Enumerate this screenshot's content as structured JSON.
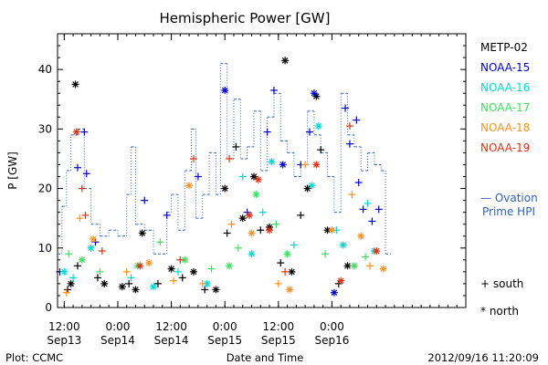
{
  "chart_data": {
    "type": "scatter",
    "title": "Hemispheric Power [GW]",
    "ylabel": "P [GW]",
    "xlabel": "Date and Time",
    "ylim": [
      0,
      46
    ],
    "xlim": [
      "2012-09-13T10:30",
      "2012-09-17T06:00"
    ],
    "y_ticks": [
      0,
      10,
      20,
      30,
      40
    ],
    "x_ticks": [
      {
        "t": "2012-09-13T12:00",
        "line1": "12:00",
        "line2": "Sep13"
      },
      {
        "t": "2012-09-14T00:00",
        "line1": "0:00",
        "line2": "Sep14"
      },
      {
        "t": "2012-09-14T12:00",
        "line1": "12:00",
        "line2": "Sep14"
      },
      {
        "t": "2012-09-15T00:00",
        "line1": "0:00",
        "line2": "Sep15"
      },
      {
        "t": "2012-09-15T12:00",
        "line1": "12:00",
        "line2": "Sep15"
      },
      {
        "t": "2012-09-16T00:00",
        "line1": "0:00",
        "line2": "Sep16"
      }
    ],
    "grid": false,
    "legend_position": "right",
    "series": [
      {
        "name": "METP-02",
        "color": "#000000",
        "points": [
          [
            "2012-09-13T14:30",
            37.5,
            "north"
          ],
          [
            "2012-09-13T12:45",
            3,
            "south"
          ],
          [
            "2012-09-13T13:30",
            4,
            "north"
          ],
          [
            "2012-09-13T15:00",
            7,
            "south"
          ],
          [
            "2012-09-13T19:30",
            5,
            "south"
          ],
          [
            "2012-09-13T21:00",
            4,
            "north"
          ],
          [
            "2012-09-14T01:00",
            3.5,
            "north"
          ],
          [
            "2012-09-14T02:30",
            4,
            "south"
          ],
          [
            "2012-09-14T04:00",
            3,
            "north"
          ],
          [
            "2012-09-14T05:30",
            12.5,
            "north"
          ],
          [
            "2012-09-14T09:00",
            4,
            "south"
          ],
          [
            "2012-09-14T12:00",
            6.5,
            "north"
          ],
          [
            "2012-09-14T14:30",
            5,
            "south"
          ],
          [
            "2012-09-14T17:00",
            6,
            "north"
          ],
          [
            "2012-09-14T19:30",
            3,
            "south"
          ],
          [
            "2012-09-14T22:00",
            3,
            "north"
          ],
          [
            "2012-09-15T00:00",
            20,
            "north"
          ],
          [
            "2012-09-15T00:30",
            12.5,
            "south"
          ],
          [
            "2012-09-15T02:30",
            27,
            "south"
          ],
          [
            "2012-09-15T04:00",
            15,
            "north"
          ],
          [
            "2012-09-15T06:30",
            22,
            "north"
          ],
          [
            "2012-09-15T08:00",
            13,
            "south"
          ],
          [
            "2012-09-15T10:00",
            13.5,
            "north"
          ],
          [
            "2012-09-15T12:30",
            7.5,
            "south"
          ],
          [
            "2012-09-15T13:30",
            41.5,
            "north"
          ],
          [
            "2012-09-15T15:00",
            6,
            "north"
          ],
          [
            "2012-09-15T17:00",
            15.5,
            "south"
          ],
          [
            "2012-09-15T18:30",
            20,
            "north"
          ],
          [
            "2012-09-15T20:30",
            35.5,
            "north"
          ],
          [
            "2012-09-15T21:30",
            26.5,
            "south"
          ],
          [
            "2012-09-15T23:00",
            13,
            "north"
          ],
          [
            "2012-09-16T01:30",
            4,
            "south"
          ],
          [
            "2012-09-16T03:30",
            7,
            "north"
          ]
        ]
      },
      {
        "name": "NOAA-15",
        "color": "#0000c8",
        "points": [
          [
            "2012-09-13T11:00",
            6,
            "south"
          ],
          [
            "2012-09-13T15:00",
            23.5,
            "south"
          ],
          [
            "2012-09-13T16:30",
            29.5,
            "south"
          ],
          [
            "2012-09-13T17:00",
            22.5,
            "south"
          ],
          [
            "2012-09-13T19:00",
            11,
            "south"
          ],
          [
            "2012-09-14T06:00",
            18,
            "south"
          ],
          [
            "2012-09-14T11:00",
            15.5,
            "south"
          ],
          [
            "2012-09-14T18:00",
            22,
            "south"
          ],
          [
            "2012-09-15T00:00",
            36.5,
            "north"
          ],
          [
            "2012-09-15T05:00",
            16,
            "south"
          ],
          [
            "2012-09-15T09:30",
            29.5,
            "south"
          ],
          [
            "2012-09-15T11:00",
            36.5,
            "south"
          ],
          [
            "2012-09-15T13:00",
            24,
            "north"
          ],
          [
            "2012-09-15T17:00",
            24,
            "south"
          ],
          [
            "2012-09-15T19:00",
            29.5,
            "south"
          ],
          [
            "2012-09-15T20:00",
            36,
            "north"
          ],
          [
            "2012-09-16T03:00",
            33.5,
            "south"
          ],
          [
            "2012-09-16T04:00",
            27.5,
            "south"
          ],
          [
            "2012-09-16T05:30",
            31.5,
            "south"
          ],
          [
            "2012-09-16T06:00",
            21,
            "south"
          ],
          [
            "2012-09-16T07:00",
            16.5,
            "south"
          ],
          [
            "2012-09-16T09:00",
            14.5,
            "south"
          ],
          [
            "2012-09-16T10:30",
            16.5,
            "south"
          ],
          [
            "2012-09-16T00:30",
            2.5,
            "north"
          ]
        ]
      },
      {
        "name": "NOAA-16",
        "color": "#00d8d8",
        "points": [
          [
            "2012-09-13T12:00",
            6,
            "north"
          ],
          [
            "2012-09-13T14:00",
            5,
            "south"
          ],
          [
            "2012-09-13T18:00",
            10,
            "north"
          ],
          [
            "2012-09-14T03:00",
            5,
            "south"
          ],
          [
            "2012-09-14T08:00",
            3.5,
            "north"
          ],
          [
            "2012-09-14T13:30",
            6,
            "south"
          ],
          [
            "2012-09-14T20:00",
            4,
            "north"
          ],
          [
            "2012-09-15T04:00",
            22,
            "south"
          ],
          [
            "2012-09-15T06:00",
            9,
            "north"
          ],
          [
            "2012-09-15T08:30",
            16,
            "south"
          ],
          [
            "2012-09-15T10:30",
            24.5,
            "north"
          ],
          [
            "2012-09-15T15:30",
            10.5,
            "south"
          ],
          [
            "2012-09-15T19:30",
            20.5,
            "north"
          ],
          [
            "2012-09-15T21:00",
            30.5,
            "north"
          ],
          [
            "2012-09-16T01:00",
            13,
            "south"
          ],
          [
            "2012-09-16T02:30",
            10.5,
            "north"
          ],
          [
            "2012-09-16T08:00",
            17.5,
            "south"
          ],
          [
            "2012-09-16T09:30",
            9.5,
            "north"
          ]
        ]
      },
      {
        "name": "NOAA-17",
        "color": "#40e060",
        "points": [
          [
            "2012-09-13T13:00",
            9,
            "south"
          ],
          [
            "2012-09-13T16:00",
            8,
            "north"
          ],
          [
            "2012-09-13T20:00",
            6,
            "south"
          ],
          [
            "2012-09-14T04:30",
            7,
            "north"
          ],
          [
            "2012-09-14T09:30",
            11,
            "south"
          ],
          [
            "2012-09-14T15:00",
            8,
            "north"
          ],
          [
            "2012-09-14T21:00",
            6.5,
            "south"
          ],
          [
            "2012-09-15T01:00",
            7,
            "north"
          ],
          [
            "2012-09-15T03:00",
            10,
            "south"
          ],
          [
            "2012-09-15T07:00",
            19,
            "north"
          ],
          [
            "2012-09-15T11:30",
            14,
            "south"
          ],
          [
            "2012-09-15T14:00",
            9,
            "north"
          ],
          [
            "2012-09-15T22:30",
            9,
            "south"
          ],
          [
            "2012-09-16T05:00",
            7,
            "north"
          ],
          [
            "2012-09-16T07:30",
            8.5,
            "south"
          ]
        ]
      },
      {
        "name": "NOAA-18",
        "color": "#ff9020",
        "points": [
          [
            "2012-09-13T12:30",
            2.5,
            "south"
          ],
          [
            "2012-09-13T15:30",
            15,
            "south"
          ],
          [
            "2012-09-13T18:30",
            11.5,
            "north"
          ],
          [
            "2012-09-14T02:00",
            6,
            "south"
          ],
          [
            "2012-09-14T07:00",
            7.5,
            "north"
          ],
          [
            "2012-09-14T12:30",
            4.5,
            "south"
          ],
          [
            "2012-09-14T16:00",
            20.5,
            "north"
          ],
          [
            "2012-09-14T19:00",
            4,
            "south"
          ],
          [
            "2012-09-15T01:30",
            14,
            "south"
          ],
          [
            "2012-09-15T06:00",
            12.5,
            "north"
          ],
          [
            "2012-09-15T12:00",
            4,
            "south"
          ],
          [
            "2012-09-15T14:30",
            3,
            "north"
          ],
          [
            "2012-09-15T18:00",
            24,
            "south"
          ],
          [
            "2012-09-16T00:00",
            13,
            "north"
          ],
          [
            "2012-09-16T04:30",
            19,
            "south"
          ],
          [
            "2012-09-16T06:30",
            12,
            "north"
          ],
          [
            "2012-09-16T08:30",
            7,
            "south"
          ],
          [
            "2012-09-16T11:30",
            6.5,
            "north"
          ]
        ]
      },
      {
        "name": "NOAA-19",
        "color": "#e03010",
        "points": [
          [
            "2012-09-13T14:45",
            29.5,
            "north"
          ],
          [
            "2012-09-13T16:00",
            20,
            "south"
          ],
          [
            "2012-09-13T16:45",
            15.5,
            "south"
          ],
          [
            "2012-09-13T20:30",
            9.5,
            "south"
          ],
          [
            "2012-09-14T05:00",
            7,
            "north"
          ],
          [
            "2012-09-14T14:00",
            8,
            "south"
          ],
          [
            "2012-09-14T17:00",
            25,
            "south"
          ],
          [
            "2012-09-15T01:00",
            25,
            "south"
          ],
          [
            "2012-09-15T05:30",
            15.5,
            "north"
          ],
          [
            "2012-09-15T07:30",
            21.5,
            "north"
          ],
          [
            "2012-09-15T10:00",
            13,
            "north"
          ],
          [
            "2012-09-15T13:30",
            6,
            "south"
          ],
          [
            "2012-09-15T20:30",
            24,
            "north"
          ],
          [
            "2012-09-16T02:00",
            4.5,
            "north"
          ],
          [
            "2012-09-16T04:00",
            30.5,
            "south"
          ],
          [
            "2012-09-16T10:00",
            9.5,
            "north"
          ]
        ]
      }
    ],
    "reference_line": {
      "name": "Ovation Prime HPI",
      "color": "#3060c0",
      "steps": [
        [
          "2012-09-13T10:30",
          9
        ],
        [
          "2012-09-13T11:30",
          17
        ],
        [
          "2012-09-13T12:30",
          23
        ],
        [
          "2012-09-13T13:30",
          29
        ],
        [
          "2012-09-13T15:00",
          30
        ],
        [
          "2012-09-13T16:30",
          20
        ],
        [
          "2012-09-13T18:00",
          14
        ],
        [
          "2012-09-13T20:00",
          12
        ],
        [
          "2012-09-13T22:00",
          13
        ],
        [
          "2012-09-14T00:00",
          12
        ],
        [
          "2012-09-14T02:00",
          19
        ],
        [
          "2012-09-14T03:00",
          27
        ],
        [
          "2012-09-14T04:00",
          14
        ],
        [
          "2012-09-14T06:00",
          13
        ],
        [
          "2012-09-14T08:00",
          9
        ],
        [
          "2012-09-14T11:00",
          16
        ],
        [
          "2012-09-14T12:00",
          19
        ],
        [
          "2012-09-14T13:30",
          13
        ],
        [
          "2012-09-14T15:00",
          23
        ],
        [
          "2012-09-14T16:30",
          30
        ],
        [
          "2012-09-14T17:30",
          15
        ],
        [
          "2012-09-14T19:00",
          19
        ],
        [
          "2012-09-14T20:30",
          26
        ],
        [
          "2012-09-14T22:00",
          19
        ],
        [
          "2012-09-14T23:00",
          41
        ],
        [
          "2012-09-15T00:30",
          25
        ],
        [
          "2012-09-15T02:00",
          35
        ],
        [
          "2012-09-15T03:30",
          25
        ],
        [
          "2012-09-15T05:00",
          27
        ],
        [
          "2012-09-15T06:30",
          33
        ],
        [
          "2012-09-15T08:00",
          23
        ],
        [
          "2012-09-15T09:30",
          32
        ],
        [
          "2012-09-15T11:00",
          36
        ],
        [
          "2012-09-15T12:30",
          28
        ],
        [
          "2012-09-15T14:00",
          26
        ],
        [
          "2012-09-15T15:30",
          22
        ],
        [
          "2012-09-15T17:00",
          24
        ],
        [
          "2012-09-15T18:30",
          33
        ],
        [
          "2012-09-15T20:00",
          29
        ],
        [
          "2012-09-15T21:30",
          26
        ],
        [
          "2012-09-15T23:00",
          22
        ],
        [
          "2012-09-16T00:30",
          16
        ],
        [
          "2012-09-16T02:00",
          36
        ],
        [
          "2012-09-16T03:30",
          29
        ],
        [
          "2012-09-16T05:00",
          27
        ],
        [
          "2012-09-16T06:30",
          23
        ],
        [
          "2012-09-16T08:00",
          26
        ],
        [
          "2012-09-16T09:30",
          24
        ],
        [
          "2012-09-16T11:00",
          23
        ],
        [
          "2012-09-16T12:00",
          9
        ]
      ]
    },
    "legend": {
      "entries": [
        "METP-02",
        "NOAA-15",
        "NOAA-16",
        "NOAA-17",
        "NOAA-18",
        "NOAA-19"
      ],
      "ovation_line1": "— Ovation",
      "ovation_line2": "Prime HPI",
      "south_label": "+ south",
      "north_label": "* north"
    },
    "footer": {
      "left": "Plot: CCMC",
      "right": "2012/09/16 11:20:09"
    }
  }
}
